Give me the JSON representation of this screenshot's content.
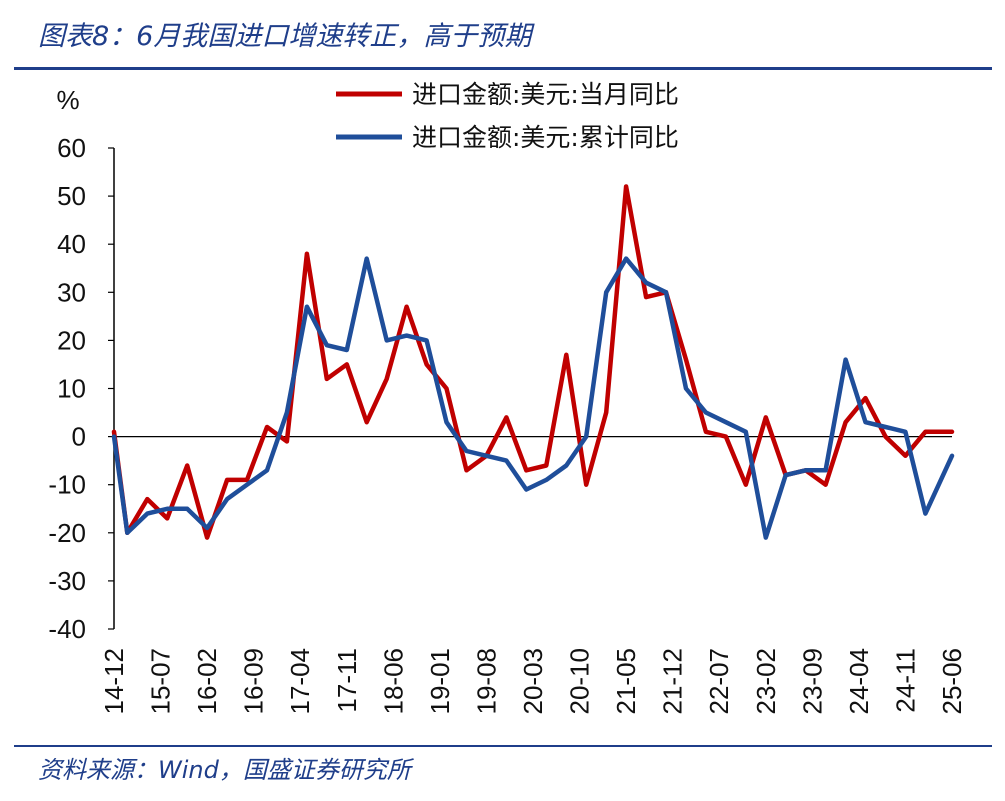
{
  "header": {
    "title": "图表8：6月我国进口增速转正，高于预期"
  },
  "footer": {
    "source": "资料来源：Wind，国盛证券研究所"
  },
  "chart_data": {
    "type": "line",
    "title": "图表8：6月我国进口增速转正，高于预期",
    "ylabel": "%",
    "xlabel": "",
    "ylim": [
      -40,
      60
    ],
    "yticks": [
      60,
      50,
      40,
      30,
      20,
      10,
      0,
      -10,
      -20,
      -30,
      -40
    ],
    "xtick_labels": [
      "14-12",
      "15-07",
      "16-02",
      "16-09",
      "17-04",
      "17-11",
      "18-06",
      "19-01",
      "19-08",
      "20-03",
      "20-10",
      "21-05",
      "21-12",
      "22-07",
      "23-02",
      "23-09",
      "24-04",
      "24-11",
      "25-06"
    ],
    "legend_position": "top-center",
    "grid": false,
    "colors": {
      "monthly": "#c00000",
      "cumulative": "#1f4e9a"
    },
    "series": [
      {
        "name": "进口金额:美元:当月同比",
        "x": [
          "14-12",
          "15-02",
          "15-05",
          "15-08",
          "15-11",
          "16-02",
          "16-05",
          "16-08",
          "16-11",
          "17-02",
          "17-05",
          "17-08",
          "17-11",
          "18-02",
          "18-05",
          "18-08",
          "18-11",
          "19-02",
          "19-05",
          "19-08",
          "19-11",
          "20-02",
          "20-05",
          "20-08",
          "20-11",
          "21-02",
          "21-05",
          "21-08",
          "21-11",
          "22-02",
          "22-05",
          "22-08",
          "22-11",
          "23-02",
          "23-05",
          "23-08",
          "23-11",
          "24-02",
          "24-05",
          "24-08",
          "24-11",
          "25-02",
          "25-06"
        ],
        "values": [
          1,
          -20,
          -13,
          -17,
          -6,
          -21,
          -9,
          -9,
          2,
          -1,
          38,
          12,
          15,
          3,
          12,
          27,
          15,
          10,
          -7,
          -4,
          4,
          -7,
          -6,
          17,
          -10,
          5,
          52,
          29,
          30,
          16,
          1,
          0,
          -10,
          4,
          -8,
          -7,
          -10,
          3,
          8,
          0,
          -4,
          1,
          1
        ]
      },
      {
        "name": "进口金额:美元:累计同比",
        "x": [
          "14-12",
          "15-02",
          "15-05",
          "15-08",
          "15-11",
          "16-02",
          "16-05",
          "16-08",
          "16-11",
          "17-02",
          "17-05",
          "17-08",
          "17-11",
          "18-02",
          "18-05",
          "18-08",
          "18-11",
          "19-02",
          "19-05",
          "19-08",
          "19-11",
          "20-02",
          "20-05",
          "20-08",
          "20-11",
          "21-02",
          "21-05",
          "21-08",
          "21-11",
          "22-02",
          "22-05",
          "22-08",
          "22-11",
          "23-02",
          "23-05",
          "23-08",
          "23-11",
          "24-02",
          "24-05",
          "24-08",
          "24-11",
          "25-02",
          "25-06"
        ],
        "values": [
          0,
          -20,
          -16,
          -15,
          -15,
          -19,
          -13,
          -10,
          -7,
          5,
          27,
          19,
          18,
          37,
          20,
          21,
          20,
          3,
          -3,
          -4,
          -5,
          -11,
          -9,
          -6,
          0,
          30,
          37,
          32,
          30,
          10,
          5,
          3,
          1,
          -21,
          -8,
          -7,
          -7,
          16,
          3,
          2,
          1,
          -16,
          -4
        ]
      }
    ]
  }
}
